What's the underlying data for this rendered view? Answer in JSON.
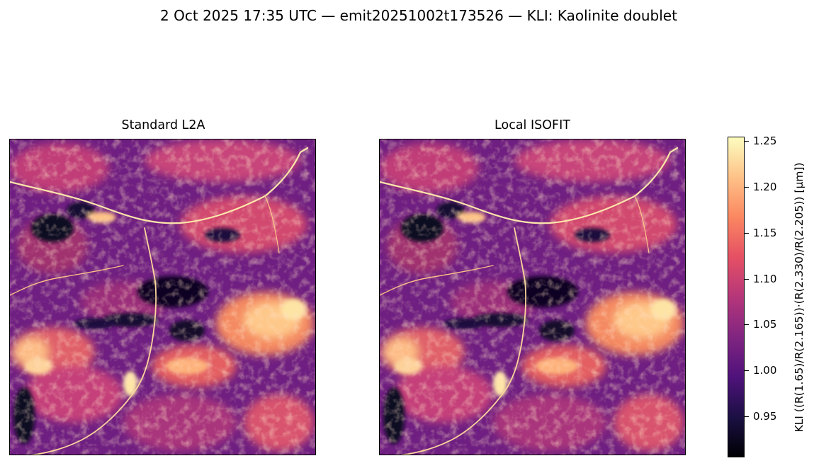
{
  "figure": {
    "suptitle": "2 Oct 2025 17:35 UTC — emit20251002t173526 — KLI: Kaolinite doublet"
  },
  "panels": [
    {
      "title": "Standard L2A"
    },
    {
      "title": "Local ISOFIT"
    }
  ],
  "colorbar": {
    "label": "KLI  ((R(1.65)/R(2.165))·(R(2.330)/R(2.205))  [μm])",
    "colormap": "magma",
    "colors": [
      "#000004",
      "#1c1044",
      "#4f127b",
      "#812581",
      "#b5367a",
      "#e55064",
      "#fb8761",
      "#fec287",
      "#fcfdbf"
    ],
    "vmin": 0.905,
    "vmax": 1.255,
    "ticks": [
      "0.95",
      "1.00",
      "1.05",
      "1.10",
      "1.15",
      "1.20",
      "1.25"
    ]
  }
}
